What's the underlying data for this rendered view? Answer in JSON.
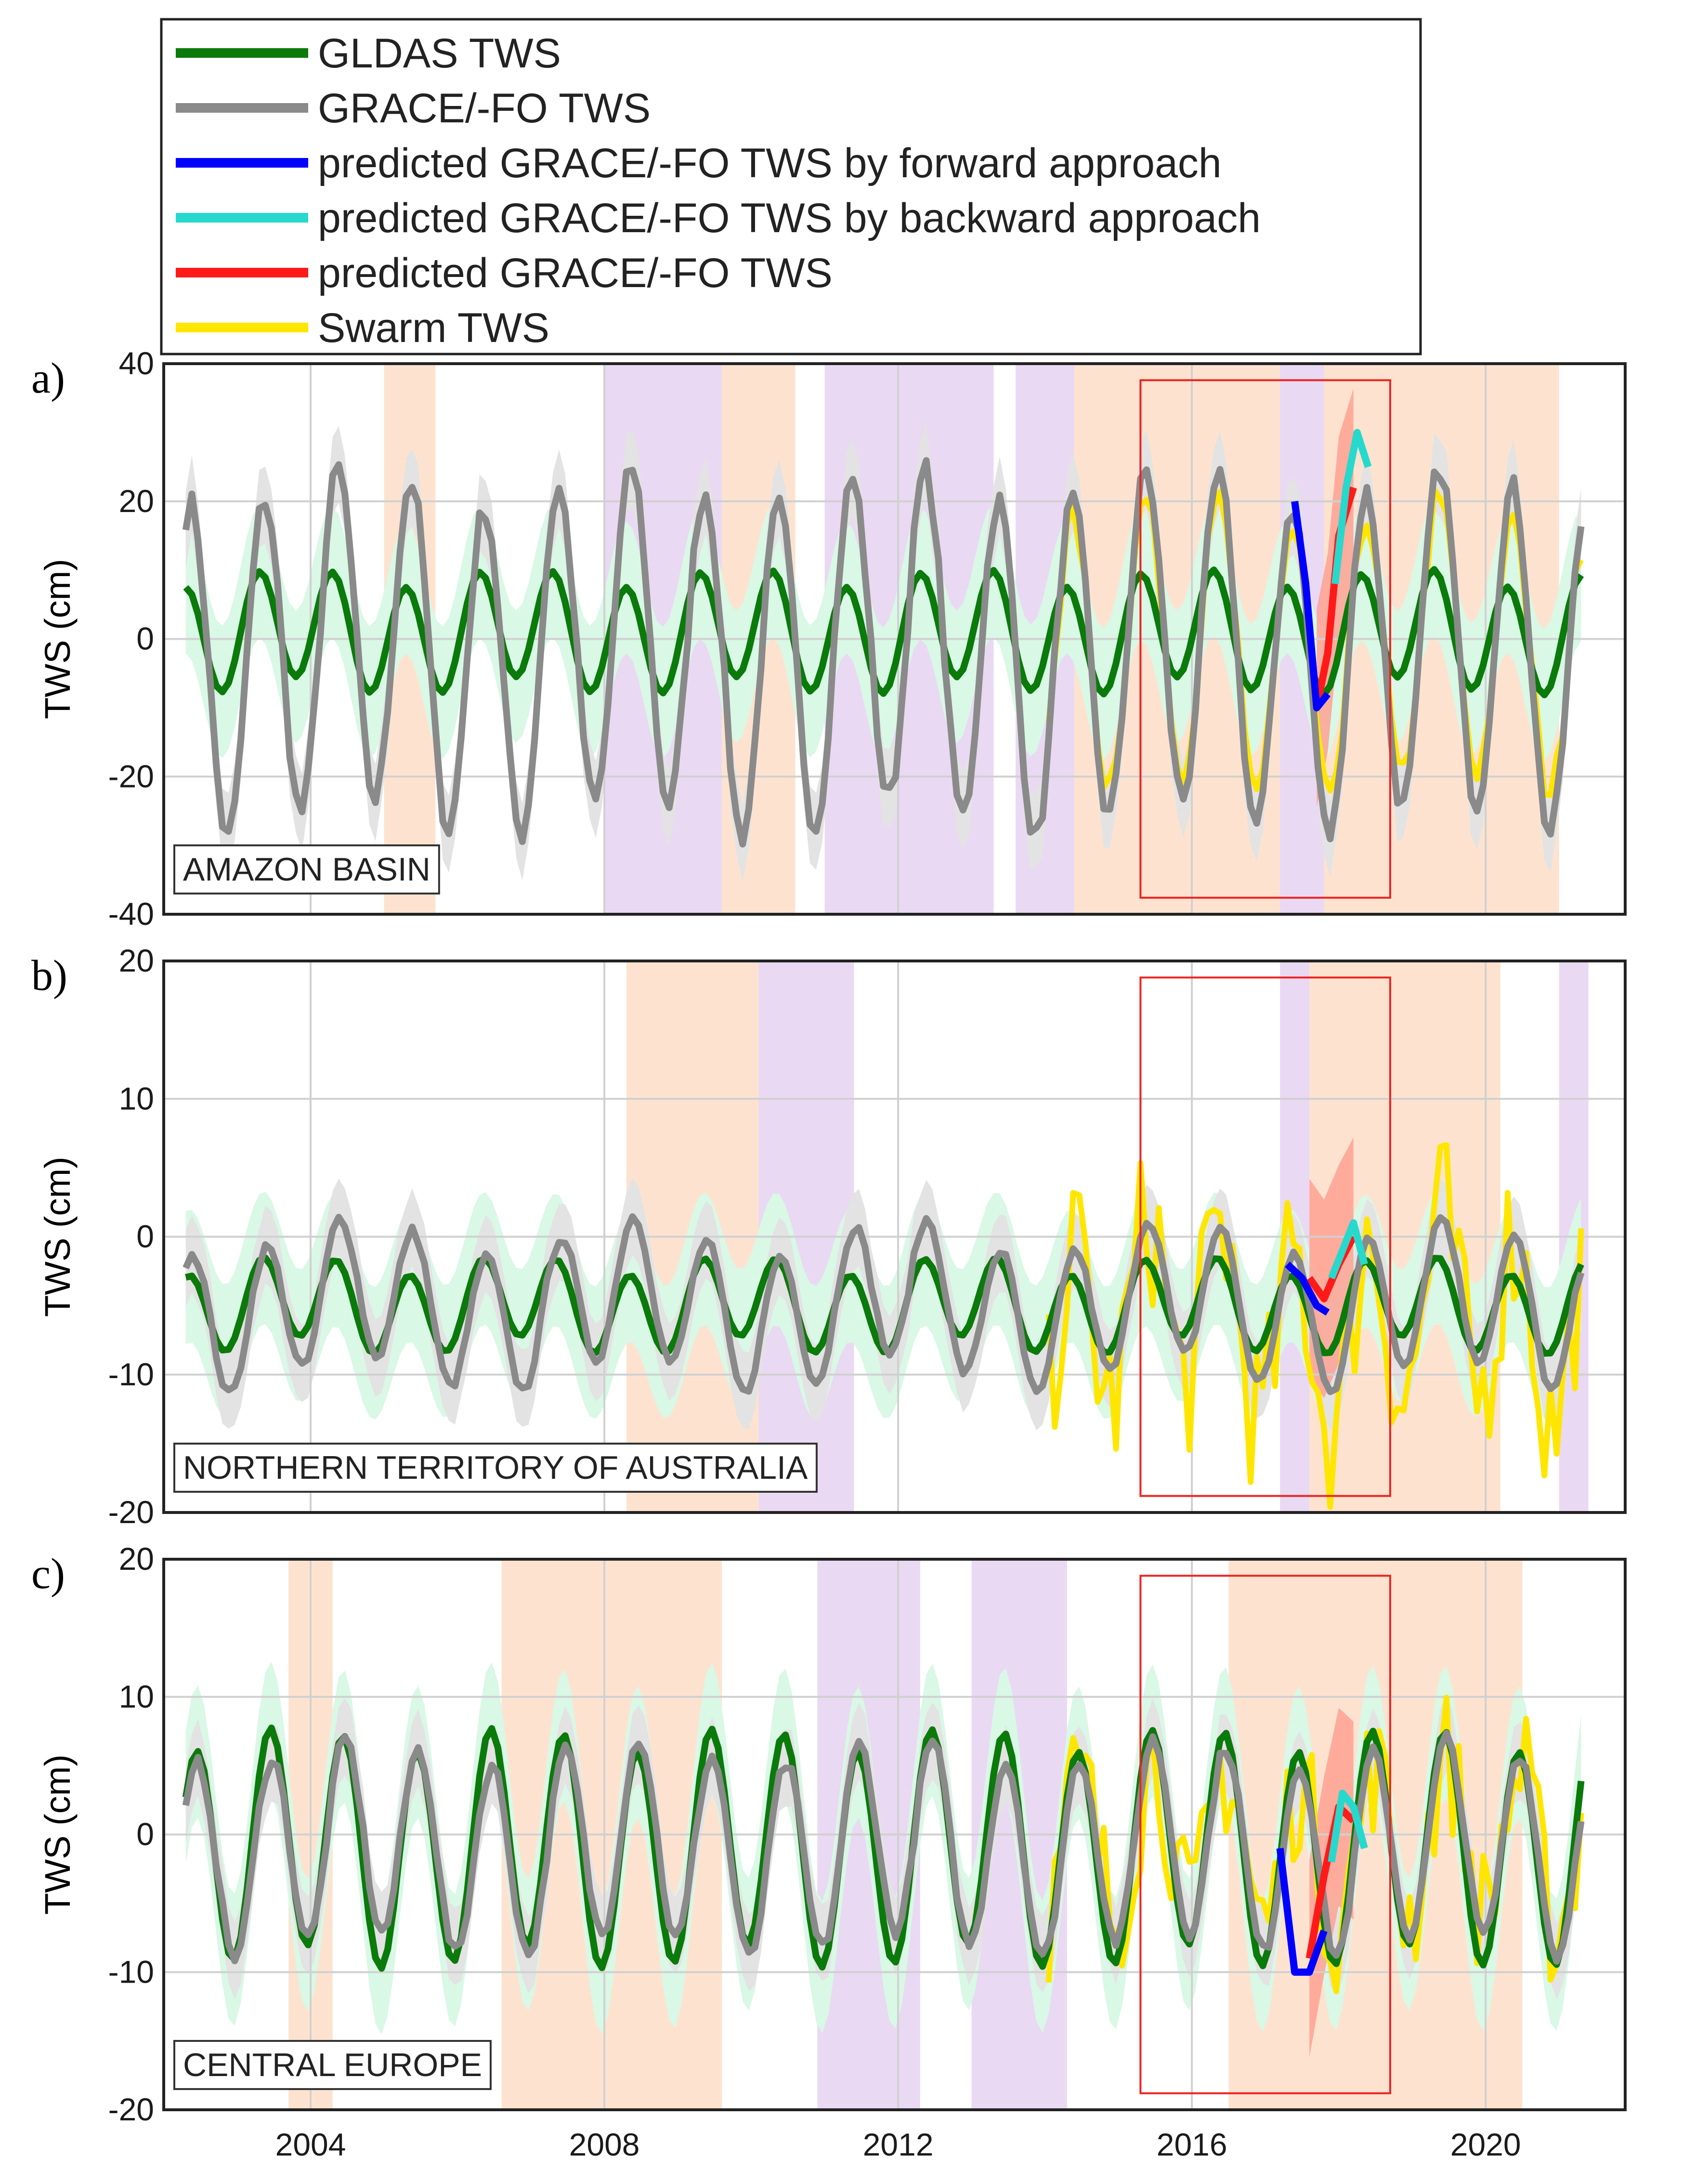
{
  "figure": {
    "x_range": [
      2002.0,
      2021.9
    ]
  },
  "legend": {
    "entries": [
      {
        "label": "GLDAS TWS",
        "color": "#0a7a0a"
      },
      {
        "label": "GRACE/-FO TWS",
        "color": "#8a8a8a"
      },
      {
        "label": "predicted GRACE/-FO TWS by forward approach",
        "color": "#0000ff"
      },
      {
        "label": "predicted GRACE/-FO TWS by backward approach",
        "color": "#27d9cc"
      },
      {
        "label": "predicted GRACE/-FO TWS",
        "color": "#ff1a1a"
      },
      {
        "label": "Swarm TWS",
        "color": "#ffe600"
      }
    ]
  },
  "colors": {
    "gldas": "#0a7a0a",
    "grace": "#8a8a8a",
    "forward": "#0000ff",
    "backward": "#27d9cc",
    "predicted": "#ff1a1a",
    "swarm": "#ffe600",
    "band_green": "#d9f8e6",
    "band_grey": "#e3e3e3",
    "band_red": "#ff9c8f",
    "shade_orange": "#fde3cf",
    "shade_purple": "#ead9f3",
    "box": "#ee2222"
  },
  "chart_data": [
    {
      "type": "line",
      "panel_label": "a)",
      "region": "AMAZON BASIN",
      "ylabel": "TWS (cm)",
      "ylim": [
        -40,
        40
      ],
      "yticks": [
        -40,
        -20,
        0,
        20,
        40
      ],
      "ytick_labels": [
        "-40",
        "-20",
        "0",
        "20",
        "40"
      ],
      "xticks": [
        2004,
        2008,
        2012,
        2016,
        2020
      ],
      "series_params": {
        "gldas": {
          "mean": 1,
          "amp": 8,
          "amp2": 1.5,
          "phase": 0.05
        },
        "grace": {
          "mean": -2,
          "amp": 24,
          "amp2": 3,
          "phase": 0.12
        },
        "swarm": {
          "start": 2014.0,
          "amp": 22,
          "noise": 2
        }
      },
      "shading": {
        "orange": [
          [
            2005.0,
            2005.7
          ],
          [
            2009.6,
            2010.6
          ],
          [
            2014.4,
            2015.1
          ],
          [
            2015.1,
            2021.0
          ]
        ],
        "purple": [
          [
            2008.0,
            2009.6
          ],
          [
            2011.0,
            2013.3
          ],
          [
            2013.6,
            2014.4
          ],
          [
            2017.2,
            2017.8
          ]
        ]
      },
      "prediction": {
        "forward": [
          [
            2017.4,
            20
          ],
          [
            2017.55,
            8
          ],
          [
            2017.7,
            -10
          ],
          [
            2017.85,
            -8
          ]
        ],
        "backward": [
          [
            2017.95,
            8
          ],
          [
            2018.1,
            22
          ],
          [
            2018.25,
            30
          ],
          [
            2018.4,
            25
          ]
        ],
        "predicted": [
          [
            2017.7,
            -10
          ],
          [
            2017.85,
            -2
          ],
          [
            2018.0,
            15
          ],
          [
            2018.2,
            22
          ]
        ]
      },
      "box": [
        2015.3,
        2018.7
      ]
    },
    {
      "type": "line",
      "panel_label": "b)",
      "region": "NORTHERN TERRITORY OF AUSTRALIA",
      "ylabel": "TWS (cm)",
      "ylim": [
        -20,
        20
      ],
      "yticks": [
        -20,
        -10,
        0,
        10,
        20
      ],
      "ytick_labels": [
        "-20",
        "-10",
        "0",
        "10",
        "20"
      ],
      "xticks": [
        2004,
        2008,
        2012,
        2016,
        2020
      ],
      "series_params": {
        "gldas": {
          "mean": -5,
          "amp": 3,
          "amp2": 0.8,
          "phase": 0.1
        },
        "grace": {
          "mean": -5,
          "amp": 5,
          "amp2": 1.5,
          "phase": 0.15
        },
        "swarm": {
          "start": 2014.0,
          "amp": 7,
          "noise": 6
        }
      },
      "shading": {
        "orange": [
          [
            2008.3,
            2010.1
          ],
          [
            2017.6,
            2020.2
          ]
        ],
        "purple": [
          [
            2010.1,
            2011.4
          ],
          [
            2017.2,
            2017.6
          ],
          [
            2021.0,
            2021.4
          ]
        ]
      },
      "prediction": {
        "forward": [
          [
            2017.3,
            -2
          ],
          [
            2017.5,
            -3
          ],
          [
            2017.7,
            -5
          ],
          [
            2017.85,
            -5.5
          ]
        ],
        "backward": [
          [
            2017.9,
            -3
          ],
          [
            2018.05,
            -1
          ],
          [
            2018.2,
            1
          ],
          [
            2018.35,
            -2
          ]
        ],
        "predicted": [
          [
            2017.6,
            -3
          ],
          [
            2017.8,
            -4.5
          ],
          [
            2018.0,
            -2
          ],
          [
            2018.2,
            0
          ]
        ]
      },
      "box": [
        2015.3,
        2018.7
      ]
    },
    {
      "type": "line",
      "panel_label": "c)",
      "region": "CENTRAL EUROPE",
      "ylabel": "TWS (cm)",
      "ylim": [
        -20,
        20
      ],
      "yticks": [
        -20,
        -10,
        0,
        10,
        20
      ],
      "ytick_labels": [
        "-20",
        "-10",
        "0",
        "10",
        "20"
      ],
      "xticks": [
        2004,
        2008,
        2012,
        2016,
        2020
      ],
      "series_params": {
        "gldas": {
          "mean": -1,
          "amp": 8,
          "amp2": 1,
          "phase": 0.2
        },
        "grace": {
          "mean": -1,
          "amp": 7,
          "amp2": 1,
          "phase": 0.22
        },
        "swarm": {
          "start": 2014.0,
          "amp": 6,
          "noise": 5
        }
      },
      "shading": {
        "orange": [
          [
            2003.7,
            2004.3
          ],
          [
            2006.6,
            2009.6
          ],
          [
            2016.5,
            2020.5
          ]
        ],
        "purple": [
          [
            2010.9,
            2012.3
          ],
          [
            2013.0,
            2014.3
          ]
        ]
      },
      "prediction": {
        "forward": [
          [
            2017.2,
            -1
          ],
          [
            2017.4,
            -10
          ],
          [
            2017.6,
            -10
          ],
          [
            2017.8,
            -7
          ]
        ],
        "backward": [
          [
            2017.9,
            -2
          ],
          [
            2018.05,
            3
          ],
          [
            2018.2,
            2
          ],
          [
            2018.35,
            -1
          ]
        ],
        "predicted": [
          [
            2017.6,
            -9
          ],
          [
            2017.8,
            -3
          ],
          [
            2018.0,
            2
          ],
          [
            2018.2,
            1
          ]
        ]
      },
      "box": [
        2015.3,
        2018.7
      ]
    }
  ]
}
